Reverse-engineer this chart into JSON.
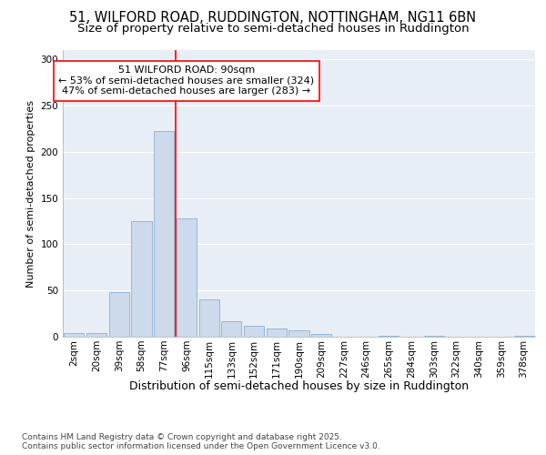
{
  "title1": "51, WILFORD ROAD, RUDDINGTON, NOTTINGHAM, NG11 6BN",
  "title2": "Size of property relative to semi-detached houses in Ruddington",
  "xlabel": "Distribution of semi-detached houses by size in Ruddington",
  "ylabel": "Number of semi-detached properties",
  "categories": [
    "2sqm",
    "20sqm",
    "39sqm",
    "58sqm",
    "77sqm",
    "96sqm",
    "115sqm",
    "133sqm",
    "152sqm",
    "171sqm",
    "190sqm",
    "209sqm",
    "227sqm",
    "246sqm",
    "265sqm",
    "284sqm",
    "303sqm",
    "322sqm",
    "340sqm",
    "359sqm",
    "378sqm"
  ],
  "values": [
    4,
    4,
    48,
    125,
    222,
    128,
    40,
    17,
    12,
    9,
    7,
    3,
    0,
    0,
    1,
    0,
    1,
    0,
    0,
    0,
    1
  ],
  "bar_color": "#cddaeb",
  "bar_edge_color": "#8aafd4",
  "annotation_box_text_line1": "51 WILFORD ROAD: 90sqm",
  "annotation_box_text_line2": "← 53% of semi-detached houses are smaller (324)",
  "annotation_box_text_line3": "47% of semi-detached houses are larger (283) →",
  "annotation_box_color": "white",
  "annotation_box_edge_color": "red",
  "vline_color": "red",
  "vline_x_index": 4,
  "ylim": [
    0,
    310
  ],
  "yticks": [
    0,
    50,
    100,
    150,
    200,
    250,
    300
  ],
  "background_color": "#e8eef5",
  "footer_text": "Contains HM Land Registry data © Crown copyright and database right 2025.\nContains public sector information licensed under the Open Government Licence v3.0.",
  "title1_fontsize": 10.5,
  "title2_fontsize": 9.5,
  "xlabel_fontsize": 9,
  "ylabel_fontsize": 8,
  "tick_fontsize": 7.5,
  "annotation_fontsize": 8,
  "footer_fontsize": 6.5
}
